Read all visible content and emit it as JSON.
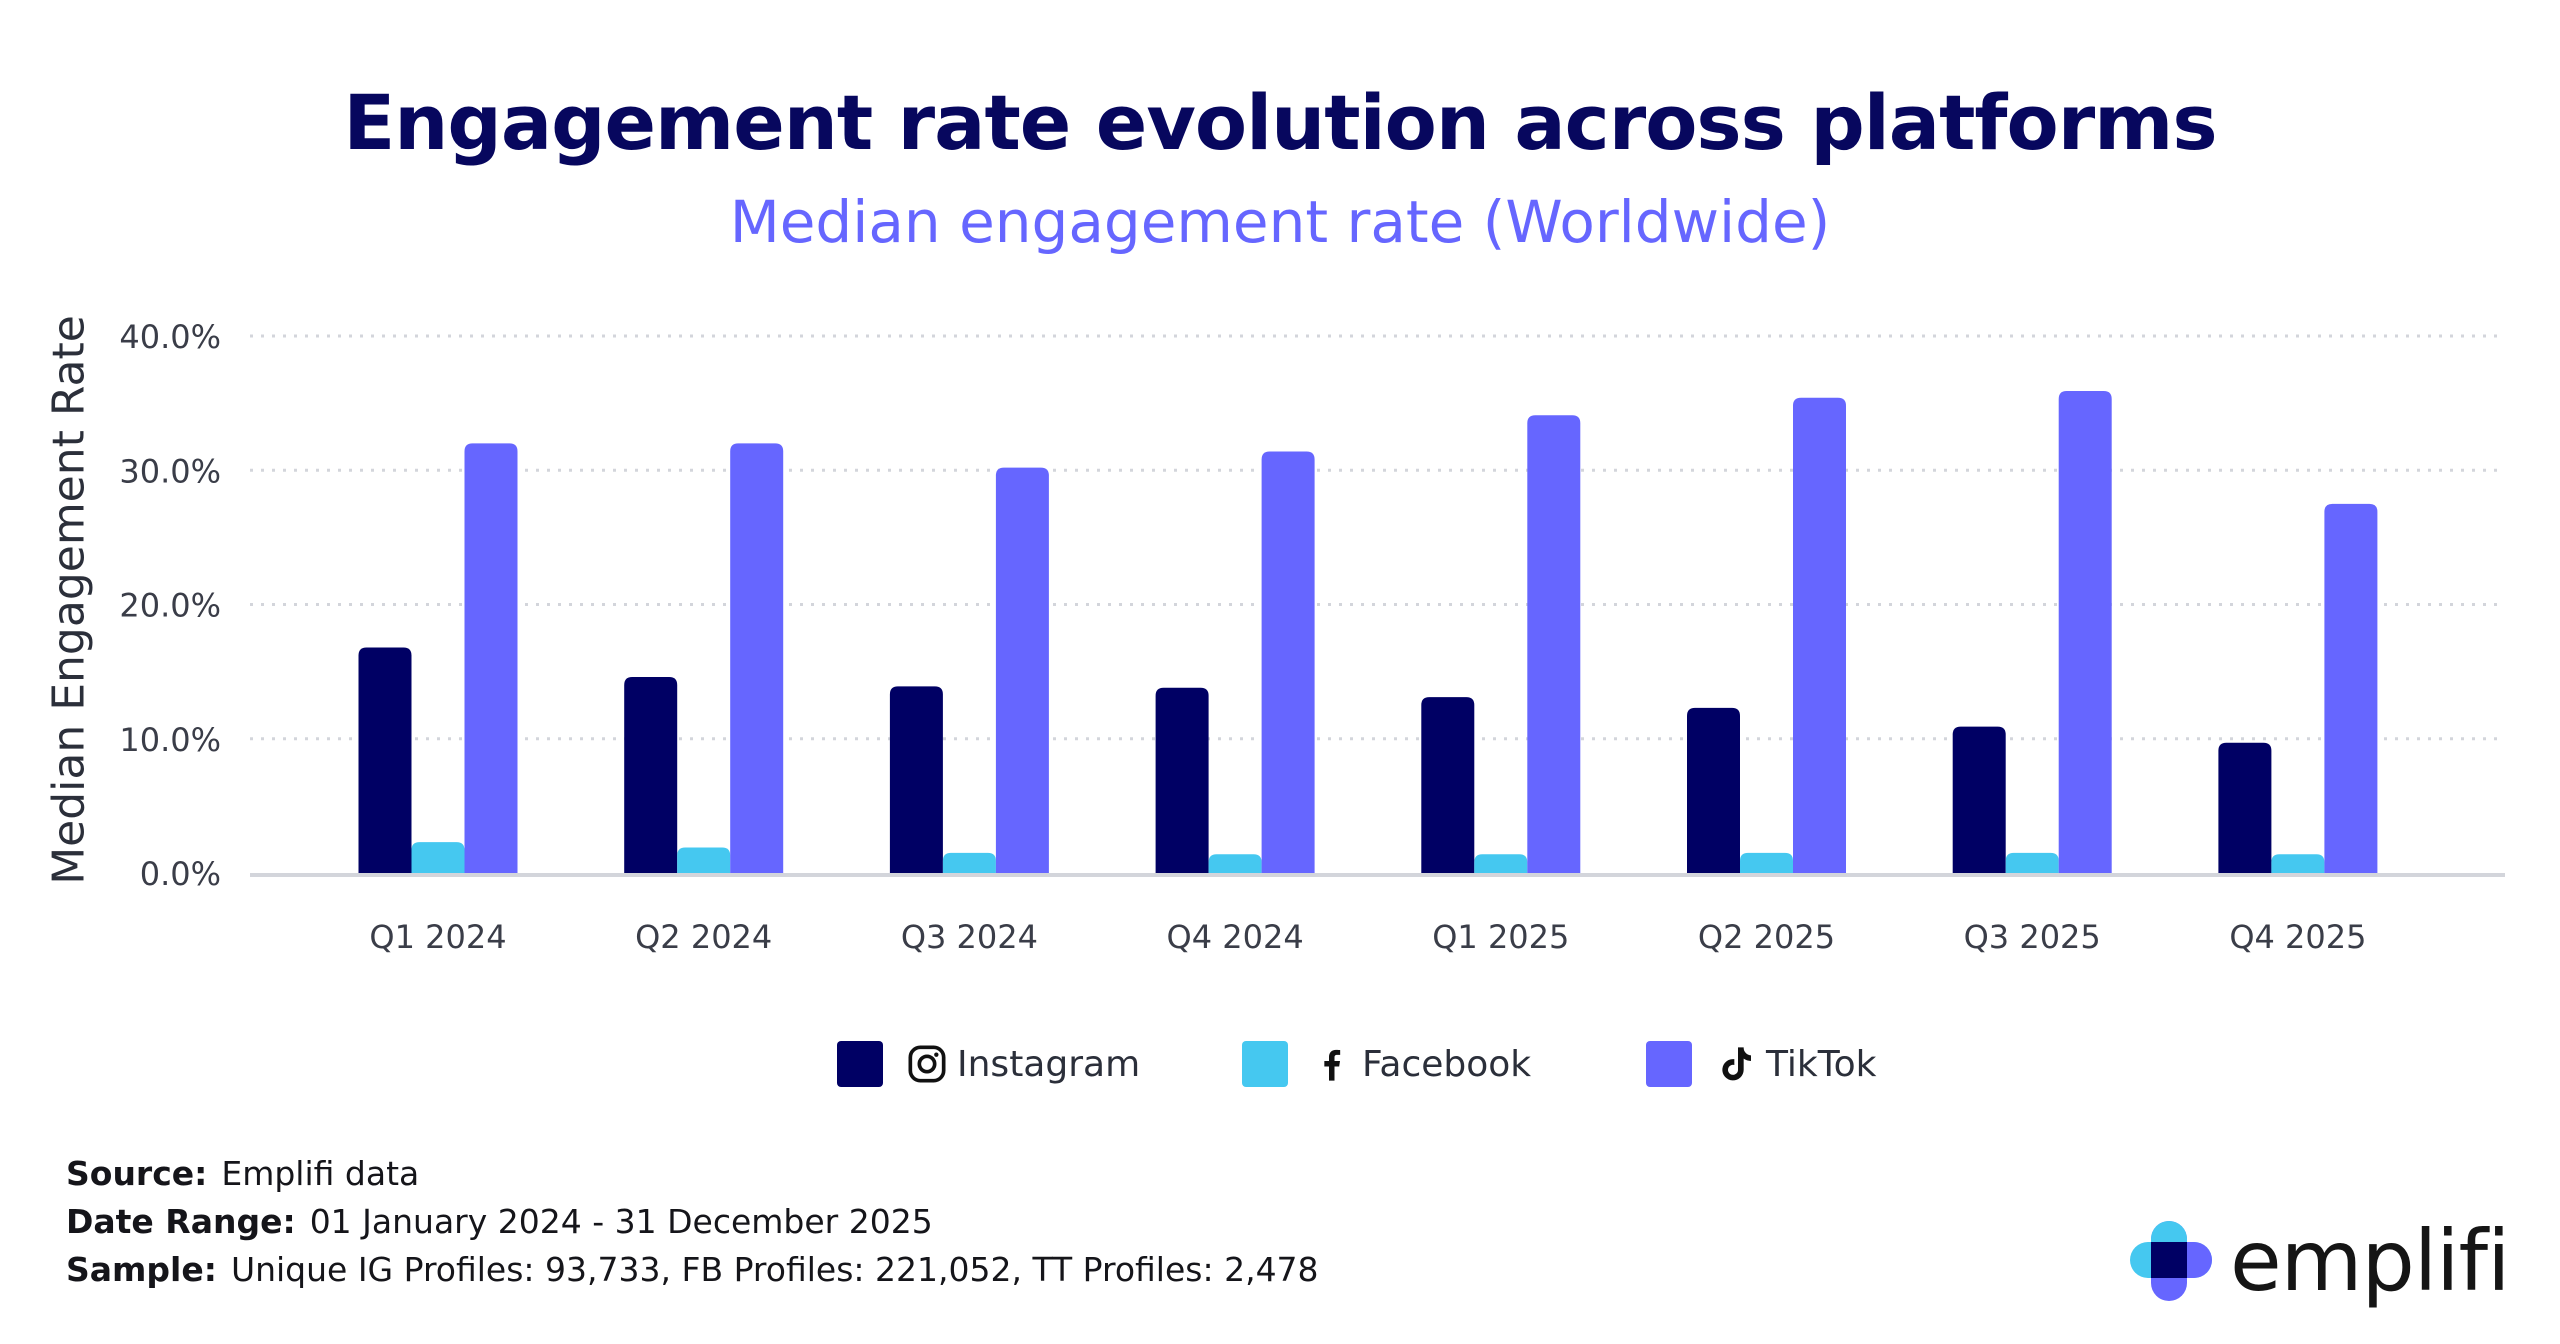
{
  "title": "Engagement rate evolution across platforms",
  "subtitle": "Median engagement rate (Worldwide)",
  "chart_data": {
    "type": "bar",
    "title": "Engagement rate evolution across platforms",
    "subtitle": "Median engagement rate (Worldwide)",
    "xlabel": "",
    "ylabel": "Median Engagement Rate",
    "ylim": [
      0,
      40
    ],
    "yticks": [
      "0.0%",
      "10.0%",
      "20.0%",
      "30.0%",
      "40.0%"
    ],
    "grid": true,
    "legend_position": "bottom",
    "categories": [
      "Q1 2024",
      "Q2 2024",
      "Q3 2024",
      "Q4 2024",
      "Q1 2025",
      "Q2 2025",
      "Q3 2025",
      "Q4 2025"
    ],
    "series": [
      {
        "name": "Instagram",
        "color": "#000064",
        "icon": "instagram-icon",
        "values": [
          16.8,
          14.6,
          13.9,
          13.8,
          13.1,
          12.3,
          10.9,
          9.7
        ]
      },
      {
        "name": "Facebook",
        "color": "#45c8f0",
        "icon": "facebook-icon",
        "values": [
          2.3,
          1.9,
          1.5,
          1.4,
          1.4,
          1.5,
          1.5,
          1.4
        ]
      },
      {
        "name": "TikTok",
        "color": "#6666ff",
        "icon": "tiktok-icon",
        "values": [
          32.0,
          32.0,
          30.2,
          31.4,
          34.1,
          35.4,
          35.9,
          27.5
        ]
      }
    ]
  },
  "footer": {
    "source_label": "Source:",
    "source_value": "Emplifi data",
    "date_label": "Date Range:",
    "date_value": "01 January 2024 - 31 December 2025",
    "sample_label": "Sample:",
    "sample_value": "Unique IG Profiles: 93,733, FB Profiles: 221,052, TT Profiles: 2,478"
  },
  "logo": {
    "text": "emplifi"
  }
}
